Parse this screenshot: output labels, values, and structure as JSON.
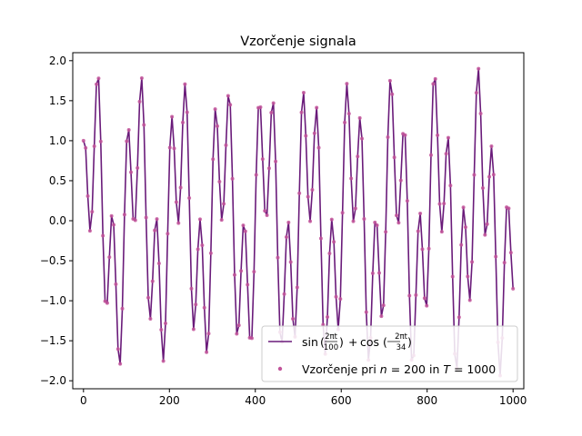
{
  "chart_data": {
    "type": "line",
    "title": "Vzorčenje signala",
    "xlabel": "",
    "ylabel": "",
    "xlim": [
      -25,
      1025
    ],
    "ylim": [
      -2.1,
      2.1
    ],
    "x_ticks": [
      0,
      200,
      400,
      600,
      800,
      1000
    ],
    "y_ticks": [
      -2.0,
      -1.5,
      -1.0,
      -0.5,
      0.0,
      0.5,
      1.0,
      1.5,
      2.0
    ],
    "x_tick_labels": [
      "0",
      "200",
      "400",
      "600",
      "800",
      "1000"
    ],
    "y_tick_labels": [
      "−2.0",
      "−1.5",
      "−1.0",
      "−0.5",
      "0.0",
      "0.5",
      "1.0",
      "1.5",
      "2.0"
    ],
    "grid": false,
    "legend_position": "lower-right",
    "series": [
      {
        "name": "line",
        "kind": "line",
        "color": "#6a1b7a",
        "label_parts": {
          "sin": "sin",
          "cos": "cos",
          "num1": "2πt",
          "den1": "100",
          "num2": "2πt",
          "den2": "34"
        }
      },
      {
        "name": "Vzorčenje pri n = 200 in T = 1000",
        "kind": "scatter",
        "color": "#c2549a",
        "label_parts": {
          "prefix": "Vzorčenje pri ",
          "var_n": "n",
          "eq_n": " = 200 in ",
          "var_t": "T",
          "eq_t": " = 1000"
        }
      }
    ],
    "function": {
      "terms": [
        {
          "fn": "sin",
          "period": 100
        },
        {
          "fn": "cos",
          "period": 34
        }
      ]
    },
    "sampling": {
      "n": 200,
      "T": 1000
    }
  }
}
